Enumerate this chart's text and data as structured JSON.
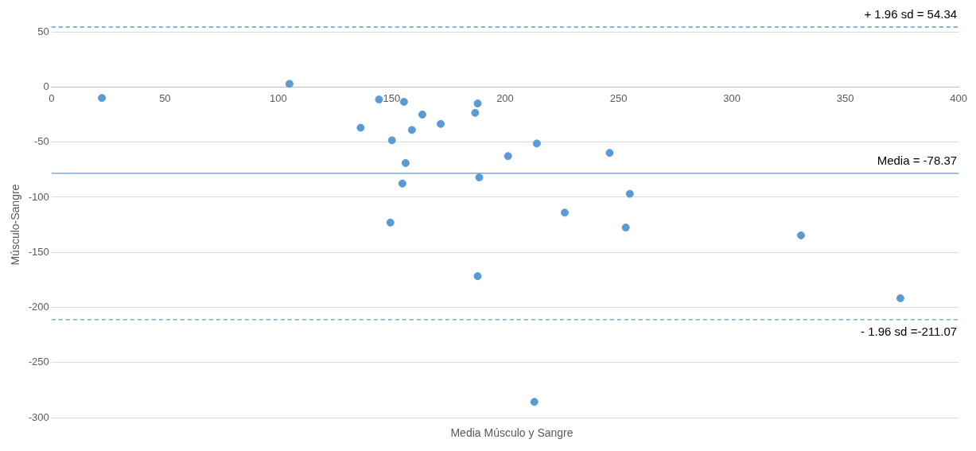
{
  "chart_data": {
    "type": "scatter",
    "xlabel": "Media Músculo y Sangre",
    "ylabel": "Músculo-Sangre",
    "series": [
      {
        "color": "#5b9bd5",
        "x": [
          22.2,
          104.9,
          144.4,
          155.4,
          136.3,
          163.5,
          158.9,
          171.6,
          186.8,
          187.9,
          150.1,
          156.1,
          154.7,
          188.6,
          201.3,
          214,
          149.4,
          187.9,
          226.3,
          246.1,
          255,
          253.2,
          330.5,
          374.3,
          212.9
        ],
        "values": [
          -10,
          2.8,
          -11.4,
          -13.5,
          -37,
          -25,
          -39,
          -33.5,
          -23.5,
          -15,
          -48.4,
          -69,
          -87.6,
          -82,
          -62.7,
          -51.3,
          -123,
          -171.6,
          -114,
          -59.8,
          -96.9,
          -127.5,
          -134.6,
          -191.6,
          -285.6
        ]
      }
    ],
    "xlim": [
      0,
      400
    ],
    "xticks": [
      0,
      50,
      100,
      150,
      200,
      250,
      300,
      350,
      400
    ],
    "ylim": [
      -300,
      50
    ],
    "yticks": [
      -300,
      -250,
      -200,
      -150,
      -100,
      -50,
      0,
      50
    ],
    "grid": "y",
    "marker": "circle",
    "legend": false,
    "ref_lines": [
      {
        "axis": "y",
        "value": 54.34,
        "label": "+ 1.96 sd = 54.34",
        "color": "#5b9bd5",
        "line_style": "dashed"
      },
      {
        "axis": "y",
        "value": -78.37,
        "label": "Media = -78.37",
        "color": "#5b9bd5",
        "line_style": "solid"
      },
      {
        "axis": "y",
        "value": -211.07,
        "label": "- 1.96 sd =-211.07",
        "color": "#5b9bd5",
        "line_style": "dashed"
      }
    ]
  }
}
